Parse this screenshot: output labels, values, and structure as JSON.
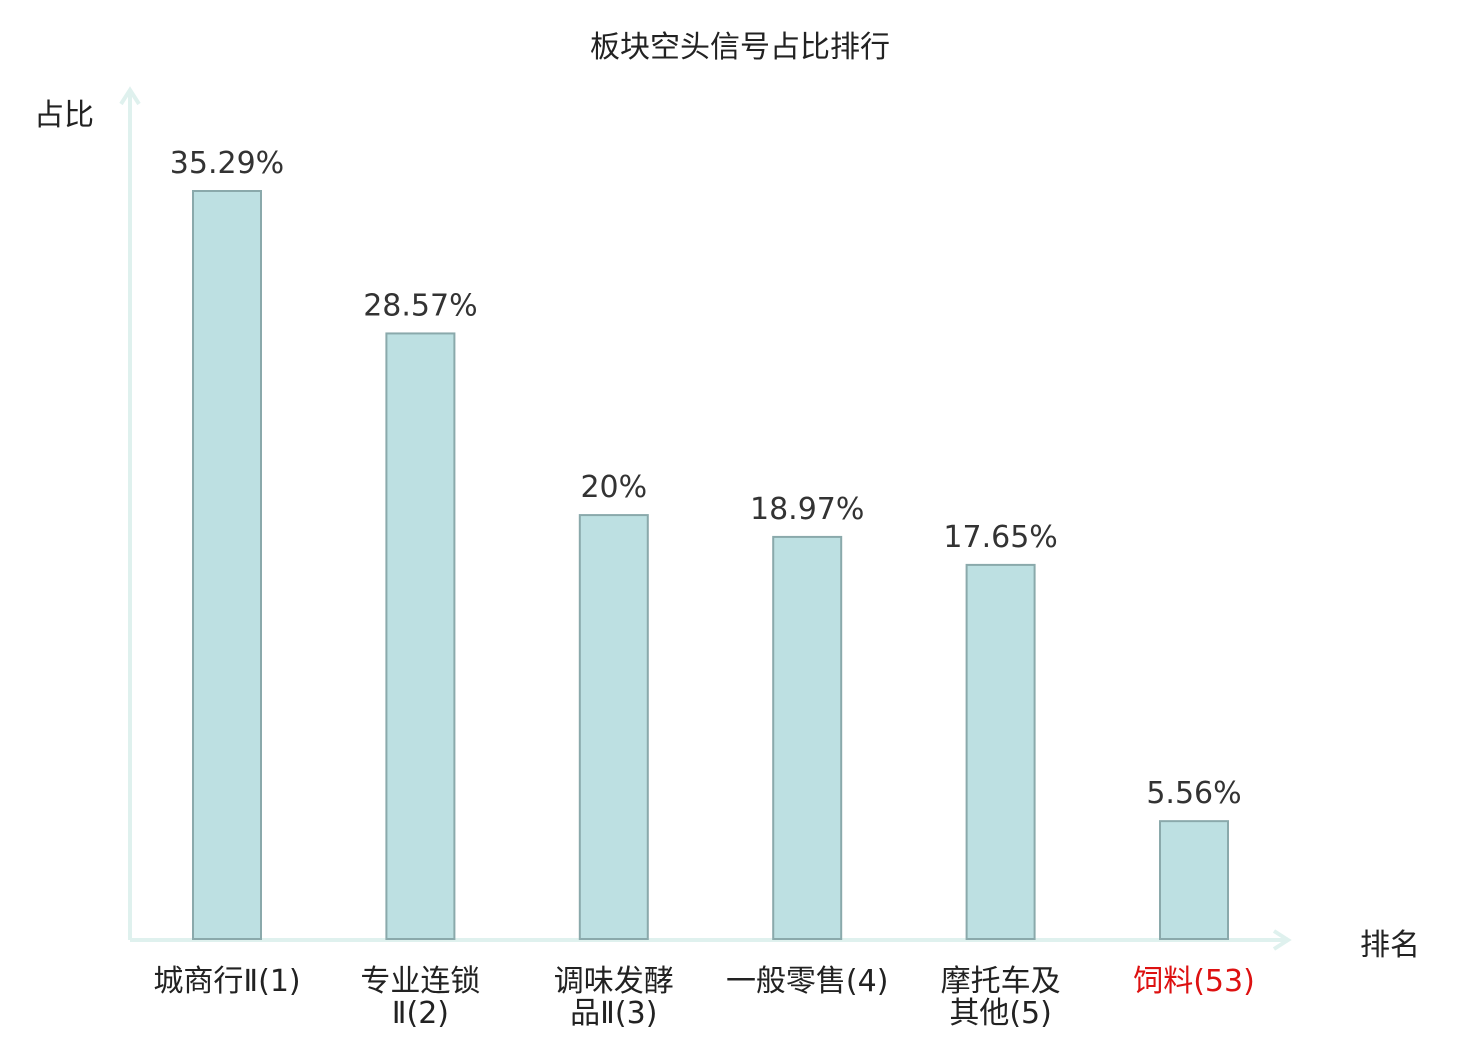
{
  "chart_data": {
    "type": "bar",
    "title": "板块空头信号占比排行",
    "xlabel": "排名",
    "ylabel": "占比",
    "categories": [
      "城商行Ⅱ(1)",
      "专业连锁\nⅡ(2)",
      "调味发酵\n品Ⅱ(3)",
      "一般零售(4)",
      "摩托车及\n其他(5)",
      "饲料(53)"
    ],
    "values": [
      35.29,
      28.57,
      20,
      18.97,
      17.65,
      5.56
    ],
    "value_labels": [
      "35.29%",
      "28.57%",
      "20%",
      "18.97%",
      "17.65%",
      "5.56%"
    ],
    "ylim": [
      0,
      35.29
    ],
    "grid": false,
    "colors": {
      "bar_fill": "#bde0e2",
      "bar_stroke": "#8aa9ab",
      "axis": "#dff1ee",
      "text": "#222222",
      "value_text": "#333333",
      "highlight": "#dd1111"
    },
    "highlight_categories": [
      "饲料(53)"
    ]
  }
}
